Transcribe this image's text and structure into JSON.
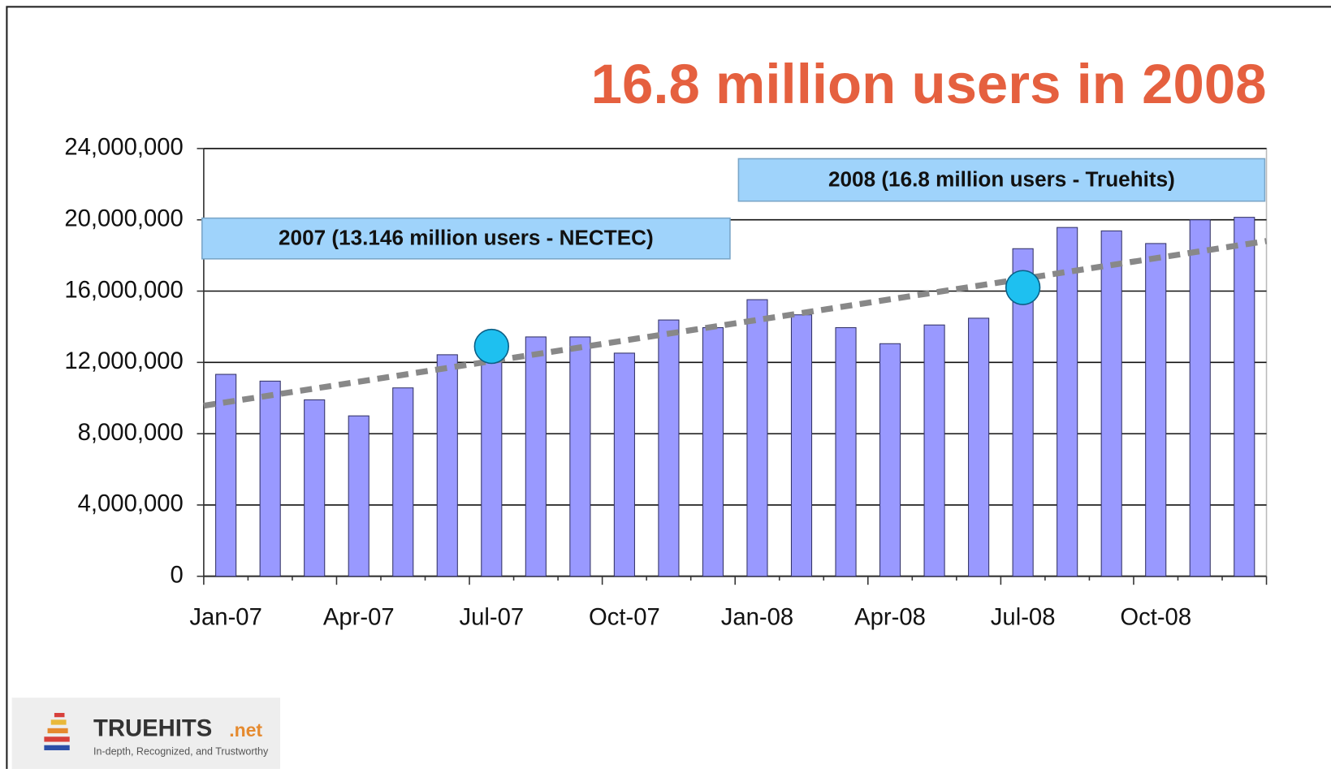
{
  "chart_data": {
    "type": "bar",
    "title": "16.8 million users in 2008",
    "categories": [
      "Jan-07",
      null,
      null,
      "Apr-07",
      null,
      null,
      "Jul-07",
      null,
      null,
      "Oct-07",
      null,
      null,
      "Jan-08",
      null,
      null,
      "Apr-08",
      null,
      null,
      "Jul-08",
      null,
      null,
      "Oct-08",
      null,
      null
    ],
    "values": [
      11330000,
      10950000,
      9900000,
      9000000,
      10570000,
      12430000,
      12600000,
      13430000,
      13430000,
      12520000,
      14380000,
      13950000,
      15520000,
      14670000,
      13950000,
      13050000,
      14100000,
      14480000,
      18380000,
      19570000,
      19380000,
      18670000,
      20000000,
      20140000
    ],
    "color": "#9999ff",
    "ylim": [
      0,
      24000000
    ],
    "yticks": [
      0,
      {
        "value": 4000000,
        "label": "4,000,000"
      },
      {
        "value": 8000000,
        "label": "8,000,000"
      },
      {
        "value": 12000000,
        "label": "12,000,000"
      },
      {
        "value": 16000000,
        "label": "16,000,000"
      },
      {
        "value": 20000000,
        "label": "20,000,000"
      },
      {
        "value": 24000000,
        "label": "24,000,000"
      }
    ],
    "grid": true,
    "trendline": {
      "color": "#888888",
      "values": [
        9570000,
        18810000
      ]
    },
    "markers": [
      {
        "x": "Jul-07",
        "value": 12900000,
        "color": "#1ec0f0"
      },
      {
        "x": "Jul-08",
        "value": 16200000,
        "color": "#1ec0f0"
      }
    ],
    "annotations": [
      "2007  (13.146 million users - NECTEC)",
      "2008 (16.8 million users - Truehits)"
    ]
  },
  "logo": {
    "name": "TRUEHITS",
    "domain": ".net",
    "tagline": "In-depth, Recognized, and Trustworthy"
  }
}
